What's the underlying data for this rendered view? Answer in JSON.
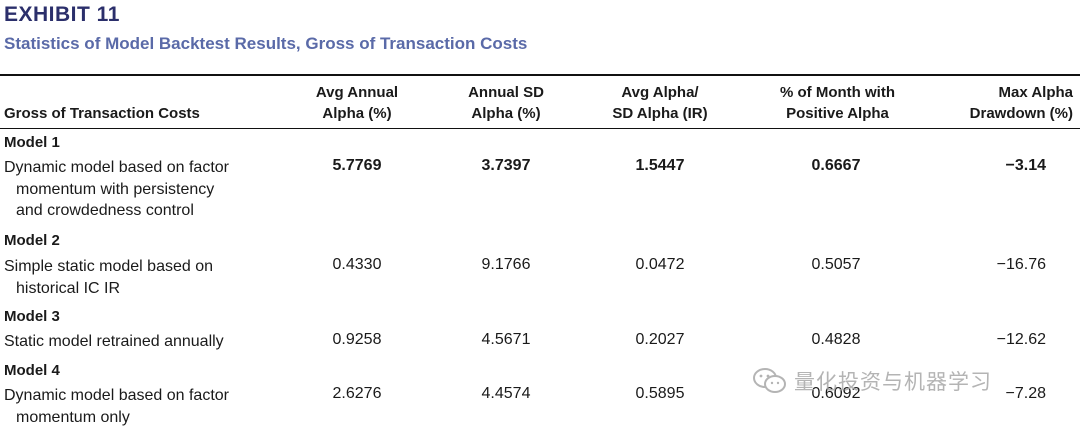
{
  "exhibit": {
    "label": "EXHIBIT 11",
    "subtitle": "Statistics of Model Backtest Results, Gross of Transaction Costs"
  },
  "table": {
    "columns": [
      {
        "line1": "",
        "line2": "Gross of Transaction Costs"
      },
      {
        "line1": "Avg Annual",
        "line2": "Alpha (%)"
      },
      {
        "line1": "Annual SD",
        "line2": "Alpha (%)"
      },
      {
        "line1": "Avg Alpha/",
        "line2": "SD Alpha (IR)"
      },
      {
        "line1": "% of Month with",
        "line2": "Positive Alpha"
      },
      {
        "line1": "Max Alpha",
        "line2": "Drawdown (%)"
      }
    ],
    "rows": [
      {
        "model": "Model 1",
        "desc_lines": [
          "Dynamic model based on factor",
          "momentum with persistency",
          "and crowdedness control"
        ],
        "values": [
          "5.7769",
          "3.7397",
          "1.5447",
          "0.6667",
          "−3.14"
        ],
        "bold": true
      },
      {
        "model": "Model 2",
        "desc_lines": [
          "Simple static model based on",
          "historical IC IR"
        ],
        "values": [
          "0.4330",
          "9.1766",
          "0.0472",
          "0.5057",
          "−16.76"
        ],
        "bold": false
      },
      {
        "model": "Model 3",
        "desc_lines": [
          "Static model retrained annually"
        ],
        "values": [
          "0.9258",
          "4.5671",
          "0.2027",
          "0.4828",
          "−12.62"
        ],
        "bold": false
      },
      {
        "model": "Model 4",
        "desc_lines": [
          "Dynamic model based on factor",
          "momentum only"
        ],
        "values": [
          "2.6276",
          "4.4574",
          "0.5895",
          "0.6092",
          "−7.28"
        ],
        "bold": false
      }
    ]
  },
  "watermark": {
    "text": "量化投资与机器学习",
    "icon": "wechat-icon"
  }
}
